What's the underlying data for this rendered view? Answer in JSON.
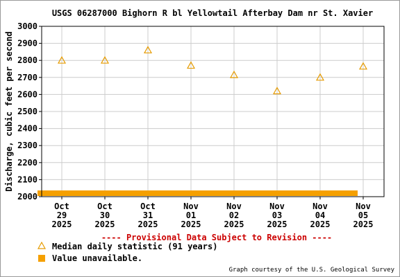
{
  "chart_data": {
    "type": "scatter",
    "title": "USGS 06287000 Bighorn R bl Yellowtail Afterbay Dam nr St. Xavier",
    "ylabel": "Discharge, cubic feet per second",
    "xlabel": "",
    "ylim": [
      2000,
      3000
    ],
    "yticks": [
      2000,
      2100,
      2200,
      2300,
      2400,
      2500,
      2600,
      2700,
      2800,
      2900,
      3000
    ],
    "grid": true,
    "x": [
      {
        "month": "Oct",
        "day": "29",
        "year": "2025"
      },
      {
        "month": "Oct",
        "day": "30",
        "year": "2025"
      },
      {
        "month": "Oct",
        "day": "31",
        "year": "2025"
      },
      {
        "month": "Nov",
        "day": "01",
        "year": "2025"
      },
      {
        "month": "Nov",
        "day": "02",
        "year": "2025"
      },
      {
        "month": "Nov",
        "day": "03",
        "year": "2025"
      },
      {
        "month": "Nov",
        "day": "04",
        "year": "2025"
      },
      {
        "month": "Nov",
        "day": "05",
        "year": "2025"
      }
    ],
    "series": [
      {
        "name": "Median daily statistic (91 years)",
        "marker": "triangle",
        "color": "#e69b00",
        "values": [
          2800,
          2800,
          2860,
          2770,
          2715,
          2620,
          2700,
          2765
        ]
      }
    ],
    "unavailable_bar": {
      "name": "Value unavailable.",
      "color": "#f5a000",
      "from": "2025-10-29",
      "to": "2025-11-05"
    },
    "provisional_note": "---- Provisional Data Subject to Revision ----",
    "credit": "Graph courtesy of the U.S. Geological Survey"
  }
}
